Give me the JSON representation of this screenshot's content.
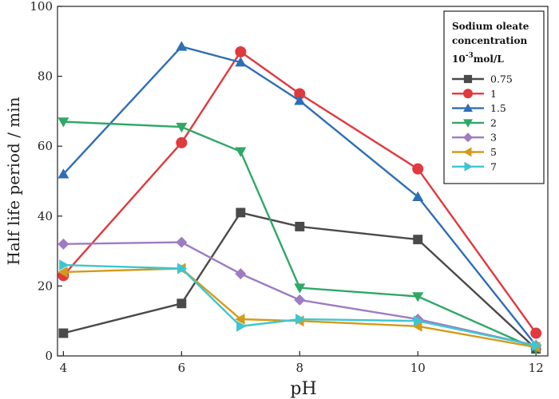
{
  "chart_data": {
    "type": "line",
    "xlabel": "pH",
    "ylabel": "Half life period  / min",
    "xlim": [
      3.9,
      12.2
    ],
    "ylim": [
      0,
      100
    ],
    "x_ticks": [
      4,
      6,
      8,
      10,
      12
    ],
    "y_ticks": [
      0,
      20,
      40,
      60,
      80,
      100
    ],
    "x_tick_labels": [
      "4",
      "6",
      "8",
      "10",
      "12"
    ],
    "y_tick_labels": [
      "0",
      "20",
      "40",
      "60",
      "80",
      "100"
    ],
    "legend": {
      "position": "top-right",
      "title_lines": [
        "Sodium oleate",
        "concentration"
      ],
      "unit_base": "10",
      "unit_exp": "-3",
      "unit_rest": "mol/L"
    },
    "x": [
      4,
      6,
      7,
      8,
      10,
      12
    ],
    "series": [
      {
        "name": "0.75",
        "color": "#4a4a4a",
        "marker": "square",
        "values": [
          6.5,
          15,
          41,
          37,
          33.3,
          2
        ]
      },
      {
        "name": "1",
        "color": "#e0393e",
        "marker": "circle",
        "values": [
          23,
          61,
          87,
          75,
          53.5,
          6.5
        ]
      },
      {
        "name": "1.5",
        "color": "#2f6eb5",
        "marker": "triangle-up",
        "values": [
          52,
          88.5,
          84,
          73,
          45.5,
          3
        ]
      },
      {
        "name": "2",
        "color": "#2fa866",
        "marker": "triangle-down",
        "values": [
          67,
          65.5,
          58.5,
          19.5,
          17,
          2
        ]
      },
      {
        "name": "3",
        "color": "#9e7bc2",
        "marker": "diamond",
        "values": [
          32,
          32.5,
          23.5,
          16,
          10.5,
          3
        ]
      },
      {
        "name": "5",
        "color": "#d49a1a",
        "marker": "triangle-left",
        "values": [
          24,
          25,
          10.5,
          10,
          8.5,
          2.5
        ]
      },
      {
        "name": "7",
        "color": "#3ec6d0",
        "marker": "triangle-right",
        "values": [
          26,
          25,
          8.5,
          10.5,
          10,
          3
        ]
      }
    ]
  }
}
